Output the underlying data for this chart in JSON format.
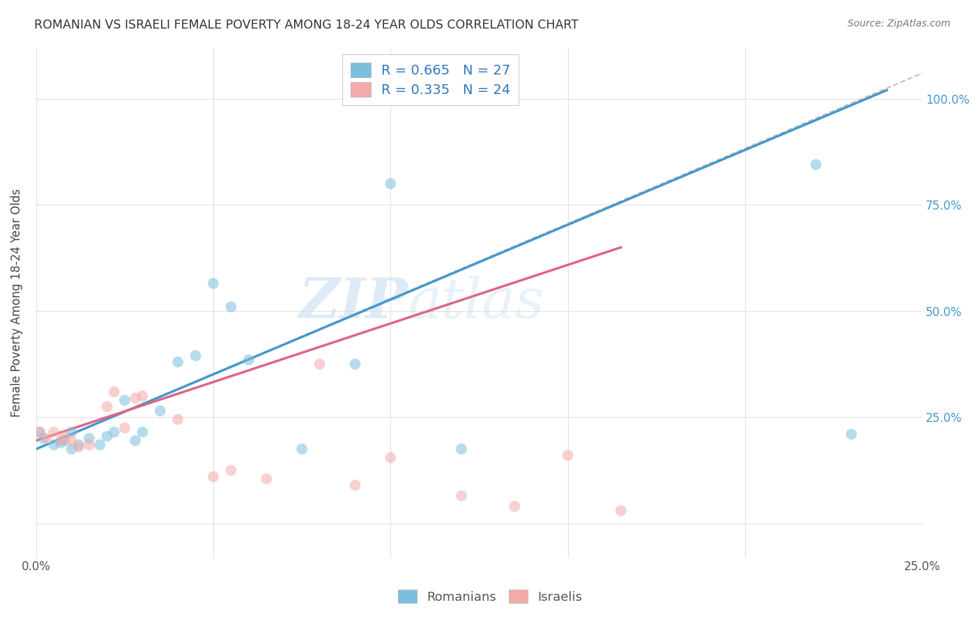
{
  "title": "ROMANIAN VS ISRAELI FEMALE POVERTY AMONG 18-24 YEAR OLDS CORRELATION CHART",
  "source": "Source: ZipAtlas.com",
  "ylabel": "Female Poverty Among 18-24 Year Olds",
  "xlim": [
    0.0,
    0.25
  ],
  "ylim": [
    -0.08,
    1.12
  ],
  "blue_color": "#7bbfdf",
  "pink_color": "#f4aaaa",
  "blue_line_color": "#4499cc",
  "pink_line_color": "#dd6688",
  "dashed_line_color": "#ccbbbb",
  "legend_text_color": "#3377bb",
  "title_color": "#333333",
  "source_color": "#777777",
  "grid_color": "#e0e0e0",
  "background_color": "#ffffff",
  "romanians_x": [
    0.001,
    0.002,
    0.005,
    0.007,
    0.008,
    0.01,
    0.01,
    0.012,
    0.015,
    0.018,
    0.02,
    0.022,
    0.025,
    0.028,
    0.03,
    0.035,
    0.04,
    0.045,
    0.05,
    0.055,
    0.06,
    0.075,
    0.09,
    0.1,
    0.12,
    0.22,
    0.23
  ],
  "romanians_y": [
    0.215,
    0.2,
    0.185,
    0.19,
    0.195,
    0.215,
    0.175,
    0.185,
    0.2,
    0.185,
    0.205,
    0.215,
    0.29,
    0.195,
    0.215,
    0.265,
    0.38,
    0.395,
    0.565,
    0.51,
    0.385,
    0.175,
    0.375,
    0.8,
    0.175,
    0.845,
    0.21
  ],
  "israelis_x": [
    0.001,
    0.003,
    0.005,
    0.007,
    0.008,
    0.01,
    0.012,
    0.015,
    0.02,
    0.022,
    0.025,
    0.028,
    0.03,
    0.04,
    0.05,
    0.055,
    0.065,
    0.08,
    0.09,
    0.1,
    0.12,
    0.135,
    0.15,
    0.165
  ],
  "israelis_y": [
    0.215,
    0.2,
    0.215,
    0.195,
    0.205,
    0.195,
    0.18,
    0.185,
    0.275,
    0.31,
    0.225,
    0.295,
    0.3,
    0.245,
    0.11,
    0.125,
    0.105,
    0.375,
    0.09,
    0.155,
    0.065,
    0.04,
    0.16,
    0.03
  ],
  "blue_trendline_x": [
    0.0,
    0.24
  ],
  "blue_trendline_y": [
    0.175,
    1.02
  ],
  "pink_trendline_x": [
    0.0,
    0.165
  ],
  "pink_trendline_y": [
    0.195,
    0.65
  ],
  "dashed_line_x": [
    0.0,
    0.25
  ],
  "dashed_line_y": [
    0.175,
    1.06
  ],
  "R_blue": 0.665,
  "N_blue": 27,
  "R_pink": 0.335,
  "N_pink": 24,
  "legend_label_blue": "Romanians",
  "legend_label_pink": "Israelis",
  "marker_size": 130,
  "marker_alpha": 0.55,
  "watermark_zip": "ZIP",
  "watermark_atlas": "atlas"
}
